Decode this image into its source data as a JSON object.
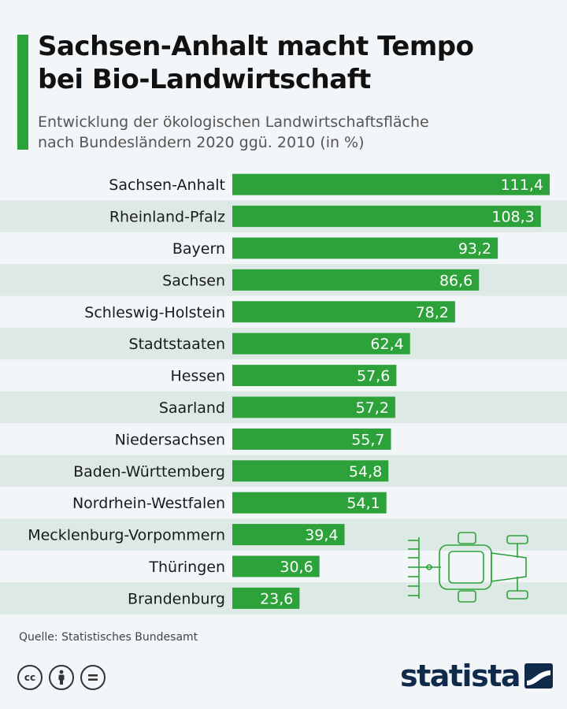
{
  "header": {
    "title_line1": "Sachsen-Anhalt macht Tempo",
    "title_line2": "bei Bio-Landwirtschaft",
    "subtitle_line1": "Entwicklung der ökologischen Landwirtschaftsfläche",
    "subtitle_line2": "nach Bundesländern 2020 ggü. 2010 (in %)"
  },
  "chart_data": {
    "type": "bar",
    "orientation": "horizontal",
    "categories": [
      "Sachsen-Anhalt",
      "Rheinland-Pfalz",
      "Bayern",
      "Sachsen",
      "Schleswig-Holstein",
      "Stadtstaaten",
      "Hessen",
      "Saarland",
      "Niedersachsen",
      "Baden-Württemberg",
      "Nordrhein-Westfalen",
      "Mecklenburg-Vorpommern",
      "Thüringen",
      "Brandenburg"
    ],
    "values": [
      111.4,
      108.3,
      93.2,
      86.6,
      78.2,
      62.4,
      57.6,
      57.2,
      55.7,
      54.8,
      54.1,
      39.4,
      30.6,
      23.6
    ],
    "value_labels": [
      "111,4",
      "108,3",
      "93,2",
      "86,6",
      "78,2",
      "62,4",
      "57,6",
      "57,2",
      "55,7",
      "54,8",
      "54,1",
      "39,4",
      "30,6",
      "23,6"
    ],
    "title": "Sachsen-Anhalt macht Tempo bei Bio-Landwirtschaft",
    "subtitle": "Entwicklung der ökologischen Landwirtschaftsfläche nach Bundesländern 2020 ggü. 2010 (in %)",
    "xlabel": "",
    "ylabel": "",
    "xlim": [
      0,
      111.4
    ],
    "grid": false,
    "legend": "none",
    "bar_color": "#2ea23a",
    "stripe_color": "#dde9e4"
  },
  "footer": {
    "source": "Quelle: Statistisches Bundesamt",
    "brand": "statista",
    "license_icons": [
      "cc-icon",
      "attribution-icon",
      "no-derivatives-icon"
    ]
  },
  "colors": {
    "accent": "#2ea23a",
    "background": "#f2f6f9",
    "brand": "#0f2a4a"
  }
}
